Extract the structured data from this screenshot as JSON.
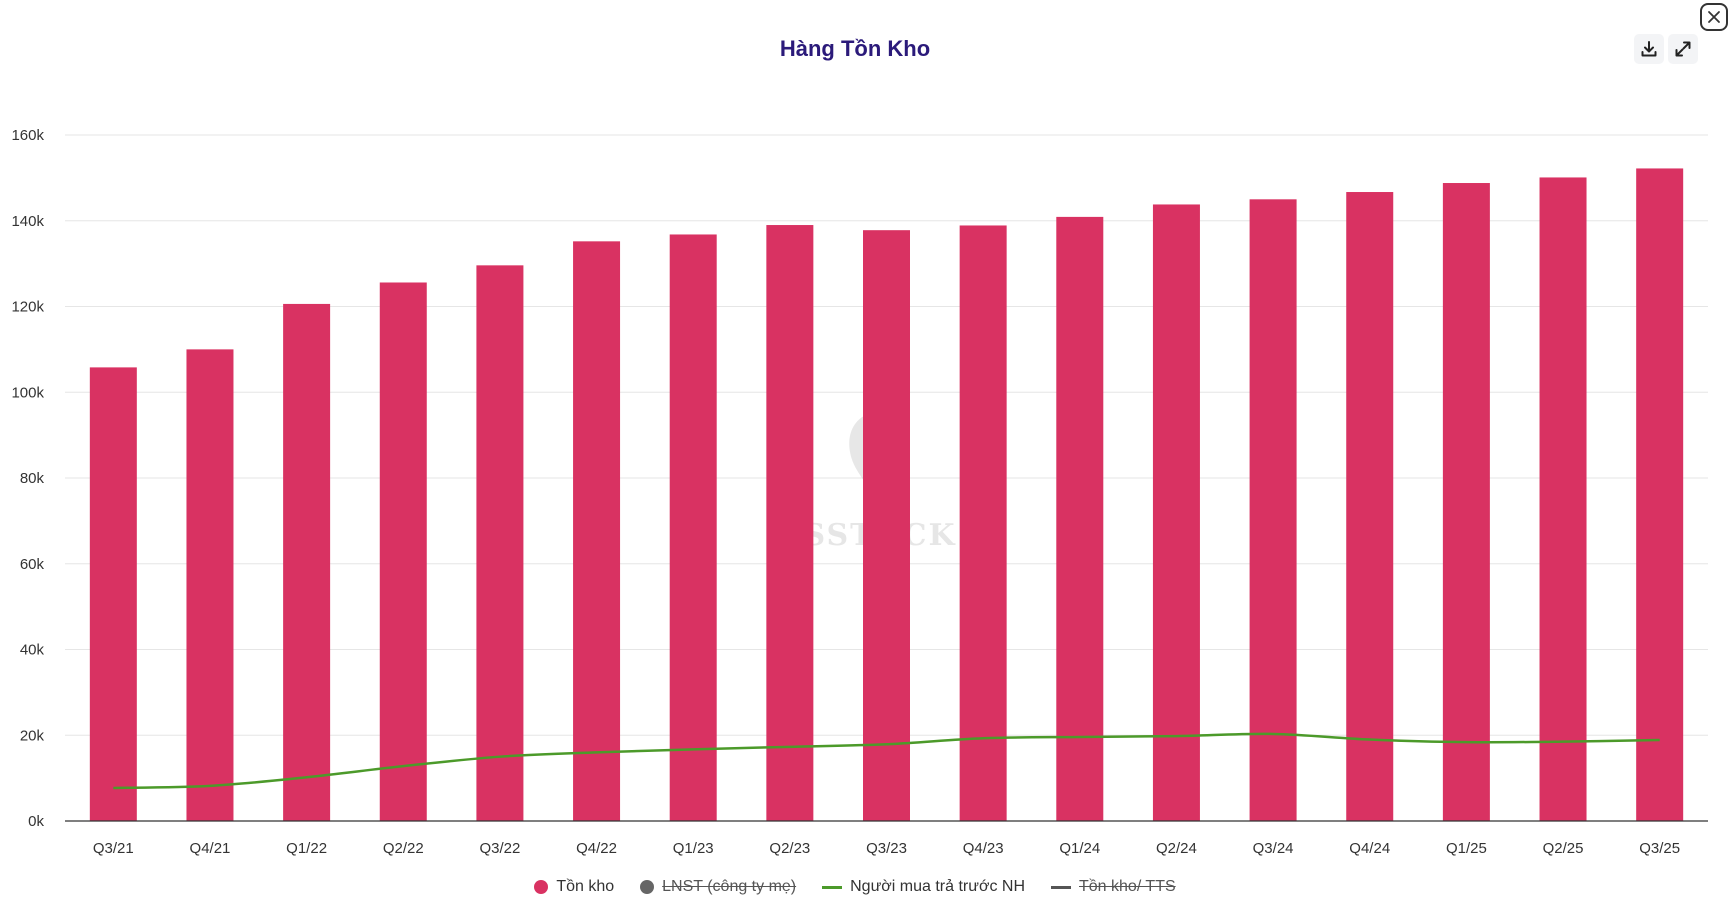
{
  "title": "Hàng Tồn Kho",
  "watermark": "SSTOCK",
  "toolbar": {
    "download_icon": "download-icon",
    "expand_icon": "expand-icon",
    "close_icon": "close-icon"
  },
  "colors": {
    "bar": "#d93262",
    "line": "#4c9a2a",
    "grid": "#e6e6e6",
    "title": "#2b1a7a",
    "hidden_dot": "#666666",
    "hidden_line": "#555555"
  },
  "legend": [
    {
      "label": "Tồn kho",
      "marker": "dot",
      "color": "#d93262",
      "visible": true
    },
    {
      "label": "LNST (công ty mẹ)",
      "marker": "dot",
      "color": "#666666",
      "visible": false
    },
    {
      "label": "Người mua trả trước NH",
      "marker": "line",
      "color": "#4c9a2a",
      "visible": true
    },
    {
      "label": "Tồn kho/ TTS",
      "marker": "line",
      "color": "#555555",
      "visible": false
    }
  ],
  "chart_data": {
    "type": "bar",
    "title": "Hàng Tồn Kho",
    "categories": [
      "Q3/21",
      "Q4/21",
      "Q1/22",
      "Q2/22",
      "Q3/22",
      "Q4/22",
      "Q1/23",
      "Q2/23",
      "Q3/23",
      "Q4/23",
      "Q1/24",
      "Q2/24",
      "Q3/24",
      "Q4/24",
      "Q1/25",
      "Q2/25",
      "Q3/25"
    ],
    "ylim": [
      0,
      160000
    ],
    "yticks": [
      0,
      20000,
      40000,
      60000,
      80000,
      100000,
      120000,
      140000,
      160000
    ],
    "ytick_labels": [
      "0k",
      "20k",
      "40k",
      "60k",
      "80k",
      "100k",
      "120k",
      "140k",
      "160k"
    ],
    "grid": true,
    "legend_position": "bottom",
    "series": [
      {
        "name": "Tồn kho",
        "type": "bar",
        "values": [
          105800,
          110000,
          120600,
          125600,
          129600,
          135200,
          136800,
          139000,
          137800,
          138900,
          140900,
          143800,
          145000,
          146700,
          148800,
          150100,
          152200
        ]
      },
      {
        "name": "Người mua trả trước NH",
        "type": "line",
        "values": [
          7700,
          8200,
          10200,
          12800,
          15000,
          16000,
          16700,
          17300,
          17900,
          19300,
          19600,
          19800,
          20300,
          19000,
          18400,
          18500,
          18900
        ]
      }
    ]
  }
}
